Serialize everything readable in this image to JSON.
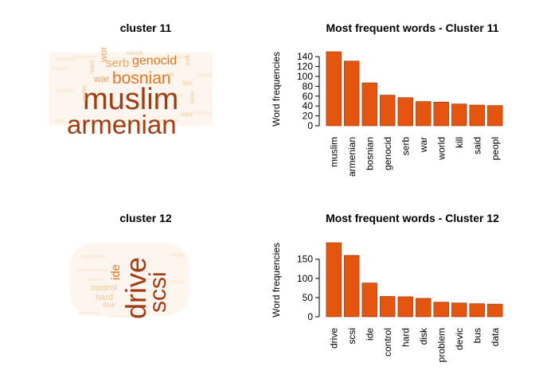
{
  "chart_data": [
    {
      "type": "wordcloud",
      "title": "cluster 11",
      "words": [
        {
          "text": "muslim",
          "weight": 150,
          "color": "#A33D10"
        },
        {
          "text": "armenian",
          "weight": 130,
          "color": "#A33D10"
        },
        {
          "text": "bosnian",
          "weight": 86,
          "color": "#E8731F"
        },
        {
          "text": "genocid",
          "weight": 61,
          "color": "#E8731F"
        },
        {
          "text": "serb",
          "weight": 56,
          "color": "#F4A05A"
        },
        {
          "text": "war",
          "weight": 49,
          "color": "#F4A05A"
        },
        {
          "text": "wor",
          "weight": 48,
          "color": "#F4A05A"
        },
        {
          "text": "turk",
          "weight": 20,
          "color": "#F8C48C"
        },
        {
          "text": "forc",
          "weight": 20,
          "color": "#F8C48C"
        },
        {
          "text": "time",
          "weight": 20,
          "color": "#F8C48C"
        },
        {
          "text": "nazi",
          "weight": 18,
          "color": "#F8C48C"
        },
        {
          "text": "turkish",
          "weight": 18,
          "color": "#F8C48C"
        },
        {
          "text": "mani",
          "weight": 18,
          "color": "#F8C48C"
        },
        {
          "text": "serdar",
          "weight": 16,
          "color": "#F8C48C"
        },
        {
          "text": "kill",
          "weight": 22,
          "color": "#F8C48C"
        }
      ]
    },
    {
      "type": "bar",
      "title": "Most frequent words - Cluster  11",
      "ylabel": "Word frequencies",
      "categories": [
        "muslim",
        "armenian",
        "bosnian",
        "genocid",
        "serb",
        "war",
        "world",
        "kill",
        "said",
        "peopl"
      ],
      "values": [
        150,
        131,
        87,
        62,
        57,
        49,
        48,
        44,
        42,
        41
      ],
      "ylim": [
        0,
        150
      ],
      "yticks": [
        0,
        20,
        40,
        60,
        80,
        100,
        120,
        140
      ],
      "bar_color": "#E6550D",
      "grid": false
    },
    {
      "type": "wordcloud",
      "title": "cluster 12",
      "words": [
        {
          "text": "drive",
          "weight": 190,
          "color": "#A33D10"
        },
        {
          "text": "scsi",
          "weight": 160,
          "color": "#A33D10"
        },
        {
          "text": "ide",
          "weight": 88,
          "color": "#E8731F"
        },
        {
          "text": "control",
          "weight": 52,
          "color": "#F8C48C"
        },
        {
          "text": "hard",
          "weight": 52,
          "color": "#F8C48C"
        },
        {
          "text": "disk",
          "weight": 48,
          "color": "#F8C48C"
        }
      ]
    },
    {
      "type": "bar",
      "title": "Most frequent words - Cluster  12",
      "ylabel": "Word frequencies",
      "categories": [
        "drive",
        "scsi",
        "ide",
        "control",
        "hard",
        "disk",
        "problem",
        "devic",
        "bus",
        "data"
      ],
      "values": [
        193,
        160,
        88,
        53,
        52,
        48,
        38,
        36,
        34,
        33
      ],
      "ylim": [
        0,
        193
      ],
      "yticks": [
        0,
        50,
        100,
        150
      ],
      "bar_color": "#E6550D",
      "grid": false
    }
  ]
}
